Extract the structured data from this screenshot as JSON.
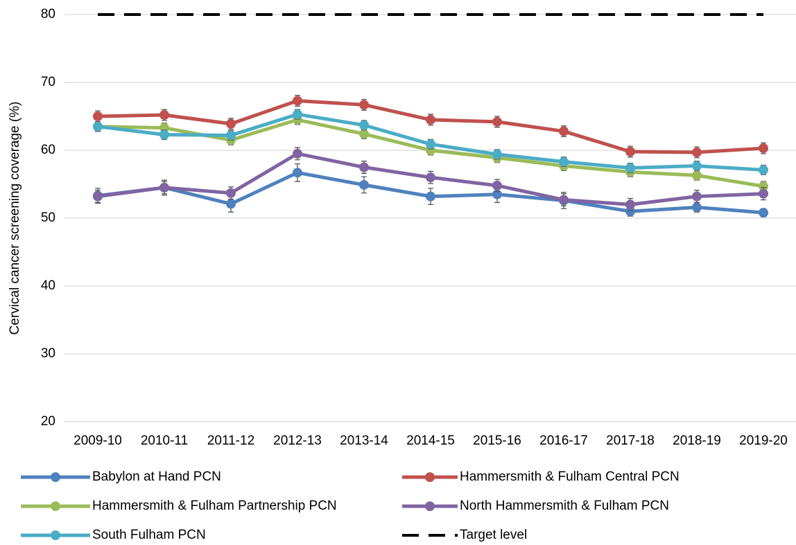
{
  "chart_data": {
    "type": "line",
    "y_label": "Cervical cancer screening coverage (%)",
    "categories": [
      "2009-10",
      "2010-11",
      "2011-12",
      "2012-13",
      "2013-14",
      "2014-15",
      "2015-16",
      "2016-17",
      "2017-18",
      "2018-19",
      "2019-20"
    ],
    "ylim": [
      20,
      80
    ],
    "yticks": [
      20,
      30,
      40,
      50,
      60,
      70,
      80
    ],
    "grid": true,
    "series": [
      {
        "name": "Babylon at Hand PCN",
        "color": "#4f81bd",
        "values": [
          53.3,
          54.5,
          52.1,
          56.7,
          54.9,
          53.2,
          53.5,
          52.6,
          51.0,
          51.6,
          50.8
        ],
        "errors": [
          1.1,
          1.1,
          1.2,
          1.3,
          1.2,
          1.2,
          1.2,
          1.2,
          0.7,
          0.7,
          0.6
        ]
      },
      {
        "name": "Hammersmith & Fulham Central PCN",
        "color": "#c0504d",
        "values": [
          65.0,
          65.2,
          63.9,
          67.3,
          66.7,
          64.5,
          64.2,
          62.8,
          59.8,
          59.7,
          60.3
        ],
        "errors": [
          0.8,
          0.8,
          0.8,
          0.8,
          0.8,
          0.8,
          0.8,
          0.8,
          0.8,
          0.8,
          0.8
        ]
      },
      {
        "name": "Hammersmith & Fulham Partnership PCN",
        "color": "#9bbb59",
        "values": [
          63.5,
          63.3,
          61.5,
          64.5,
          62.4,
          60.0,
          58.9,
          57.7,
          56.8,
          56.3,
          54.7
        ],
        "errors": [
          0.7,
          0.7,
          0.7,
          0.7,
          0.7,
          0.7,
          0.7,
          0.7,
          0.7,
          0.7,
          0.7
        ]
      },
      {
        "name": "North Hammersmith & Fulham PCN",
        "color": "#8064a2",
        "values": [
          53.2,
          54.5,
          53.7,
          59.5,
          57.5,
          56.0,
          54.8,
          52.7,
          52.0,
          53.2,
          53.6
        ],
        "errors": [
          0.9,
          0.9,
          0.9,
          0.9,
          0.9,
          0.9,
          0.9,
          0.9,
          0.9,
          0.9,
          0.9
        ]
      },
      {
        "name": "South Fulham PCN",
        "color": "#4bacc6",
        "values": [
          63.5,
          62.3,
          62.2,
          65.3,
          63.7,
          60.9,
          59.4,
          58.3,
          57.4,
          57.7,
          57.1
        ],
        "errors": [
          0.7,
          0.7,
          0.7,
          0.7,
          0.7,
          0.7,
          0.7,
          0.7,
          0.7,
          0.7,
          0.7
        ]
      },
      {
        "name": "Target level",
        "color": "#000000",
        "dashed": true,
        "values": [
          80,
          80,
          80,
          80,
          80,
          80,
          80,
          80,
          80,
          80,
          80
        ]
      }
    ]
  }
}
